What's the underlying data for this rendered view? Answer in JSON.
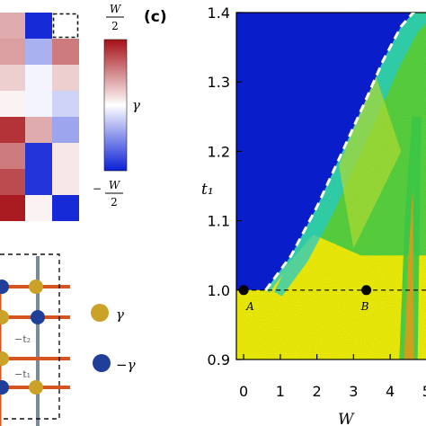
{
  "panel_label": "(c)",
  "colorbar": {
    "top_label_num": "W",
    "top_label_den": "2",
    "bottom_label_sign": "−",
    "bottom_label_num": "W",
    "bottom_label_den": "2",
    "mid_label": "γ",
    "colors": {
      "high": "#a50f15",
      "mid": "#ffffff",
      "low": "#0a1fd6"
    }
  },
  "matrix": {
    "values": [
      [
        0.35,
        -0.95,
        0.0
      ],
      [
        0.4,
        -0.35,
        0.55
      ],
      [
        0.2,
        -0.05,
        0.2
      ],
      [
        0.05,
        -0.05,
        -0.2
      ],
      [
        0.85,
        0.35,
        -0.4
      ],
      [
        0.55,
        -0.9,
        0.1
      ],
      [
        0.75,
        -0.9,
        0.1
      ],
      [
        0.95,
        0.05,
        -0.95
      ]
    ],
    "highlighted_cell": [
      0,
      2
    ]
  },
  "lattice_legend": [
    {
      "label": "γ",
      "color": "#c9a227"
    },
    {
      "label": "−γ",
      "color": "#1f3f99"
    }
  ],
  "lattice_hopping_labels": [
    "−t₂",
    "−t₁"
  ],
  "chart_data": {
    "type": "heatmap",
    "title": "",
    "xlabel": "W",
    "ylabel": "t₁",
    "xlim": [
      -0.15,
      5.2
    ],
    "ylim": [
      0.9,
      1.4
    ],
    "x_ticks": [
      0,
      1,
      2,
      3,
      4,
      5
    ],
    "x_tick_labels": [
      "0",
      "1",
      "2",
      "3",
      "4",
      "5"
    ],
    "y_ticks": [
      0.9,
      1.0,
      1.1,
      1.2,
      1.3,
      1.4
    ],
    "y_tick_labels": [
      "0.9",
      "1.0",
      "1.1",
      "1.2",
      "1.3",
      "1.4"
    ],
    "colors": {
      "blue": "#0a1fd6",
      "green": "#3ed14a",
      "yellow": "#f2f20a",
      "orange": "#e9a31c",
      "cyan": "#25d6d6"
    },
    "phase_boundary": {
      "style": "white-dashed",
      "points": [
        [
          0.6,
          1.0
        ],
        [
          1.3,
          1.05
        ],
        [
          2.0,
          1.12
        ],
        [
          2.7,
          1.2
        ],
        [
          3.3,
          1.27
        ],
        [
          3.8,
          1.33
        ],
        [
          4.3,
          1.38
        ],
        [
          4.8,
          1.41
        ]
      ]
    },
    "reference_line": {
      "y": 1.0,
      "style": "black-dashed"
    },
    "points": [
      {
        "label": "A",
        "x": 0.0,
        "y": 1.0
      },
      {
        "label": "B",
        "x": 3.35,
        "y": 1.0
      }
    ]
  }
}
